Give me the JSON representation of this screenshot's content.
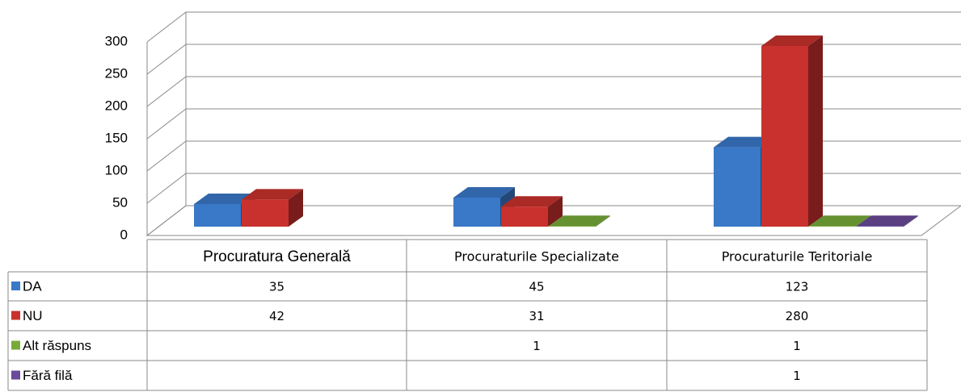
{
  "chart_data": {
    "type": "bar3d",
    "categories": [
      "Procuratura Generală",
      "Procuraturile Specializate",
      "Procuraturile Teritoriale"
    ],
    "series": [
      {
        "name": "DA",
        "color": "#3a78c8",
        "values": [
          35,
          45,
          123
        ]
      },
      {
        "name": "NU",
        "color": "#c8312d",
        "values": [
          42,
          31,
          280
        ]
      },
      {
        "name": "Alt răspuns",
        "color": "#78aa3a",
        "values": [
          null,
          1,
          1
        ]
      },
      {
        "name": "Fără filă",
        "color": "#6a4a9a",
        "values": [
          null,
          null,
          1
        ]
      }
    ],
    "ylim": [
      0,
      300
    ],
    "yticks": [
      0,
      50,
      100,
      150,
      200,
      250,
      300
    ],
    "grid": true,
    "data_table": true
  }
}
